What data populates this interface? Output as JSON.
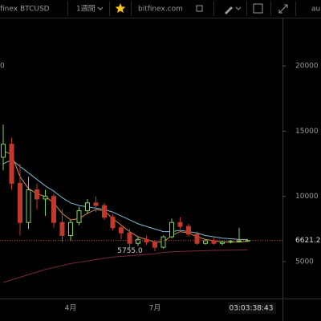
{
  "toolbar": {
    "symbol": "finex BTCUSD",
    "interval": "1週間",
    "site": "bitfinex.com",
    "account": "au"
  },
  "legend_fragment": "0",
  "chart_data": {
    "type": "candlestick",
    "categories": [
      null,
      null,
      null,
      null,
      null,
      null,
      null,
      null,
      "4月",
      null,
      null,
      null,
      null,
      null,
      null,
      null,
      null,
      null,
      "7月",
      null,
      null,
      null,
      null,
      null,
      null,
      null,
      null,
      null,
      null,
      null
    ],
    "open": [
      13000,
      14000,
      11000,
      8000,
      10500,
      9800,
      10000,
      8000,
      7000,
      8000,
      8900,
      9500,
      9300,
      8400,
      7600,
      7200,
      6400,
      6700,
      6500,
      6100,
      6900,
      8000,
      7700,
      7100,
      6400,
      6600,
      6400,
      6500,
      6550,
      6600
    ],
    "high": [
      15500,
      14500,
      12500,
      11500,
      11000,
      10500,
      10200,
      9000,
      8200,
      9200,
      9800,
      10000,
      9500,
      8600,
      7800,
      7500,
      6900,
      7000,
      6600,
      7000,
      8300,
      8400,
      7900,
      7300,
      6700,
      6800,
      6600,
      6650,
      7600,
      6700
    ],
    "low": [
      12000,
      10500,
      7000,
      7500,
      9000,
      8500,
      7600,
      6500,
      6600,
      7800,
      8700,
      8800,
      8200,
      7400,
      6700,
      6000,
      6200,
      6300,
      5800,
      6000,
      6800,
      7500,
      6900,
      6300,
      6300,
      6300,
      6250,
      6400,
      6450,
      6550
    ],
    "close": [
      14000,
      11000,
      8000,
      10500,
      9800,
      10000,
      8000,
      7000,
      8000,
      8900,
      9500,
      9300,
      8400,
      7600,
      7200,
      6400,
      6700,
      6500,
      6100,
      6900,
      8000,
      7700,
      7100,
      6400,
      6600,
      6400,
      6500,
      6550,
      6600,
      6621.2
    ],
    "up_color": "#7fd35a",
    "down_color": "#c0392b",
    "lines": [
      {
        "color": "#7fb8d0",
        "values": [
          12500,
          12800,
          12300,
          11800,
          11300,
          10800,
          10400,
          9900,
          9500,
          9300,
          9200,
          9100,
          9000,
          8800,
          8500,
          8200,
          7900,
          7700,
          7500,
          7300,
          7300,
          7400,
          7300,
          7200,
          7000,
          6900,
          6800,
          6750,
          6700,
          6700
        ]
      },
      {
        "color": "#d7874a",
        "values": [
          13500,
          13200,
          11500,
          10600,
          10200,
          10000,
          9500,
          8700,
          8200,
          8300,
          8700,
          9000,
          8900,
          8300,
          7800,
          7300,
          6900,
          6700,
          6500,
          6500,
          7000,
          7300,
          7200,
          6900,
          6700,
          6600,
          6500,
          6500,
          6500,
          6550
        ]
      },
      {
        "color": "#7a2a35",
        "values": [
          3400,
          3600,
          3800,
          4000,
          4200,
          4400,
          4550,
          4700,
          4850,
          4950,
          5050,
          5150,
          5250,
          5350,
          5400,
          5450,
          5500,
          5550,
          5600,
          5700,
          5755,
          5780,
          5800,
          5820,
          5840,
          5860,
          5870,
          5880,
          5890,
          5900
        ]
      }
    ],
    "ylim": [
      2170,
      23700
    ],
    "yticks": [
      5000,
      10000,
      15000,
      20000
    ],
    "annotation": {
      "value": 5755,
      "label": "5755.0"
    },
    "last_price": {
      "value": 6621.2,
      "label": "6621.2"
    },
    "countdown": "03:03:38:43"
  }
}
